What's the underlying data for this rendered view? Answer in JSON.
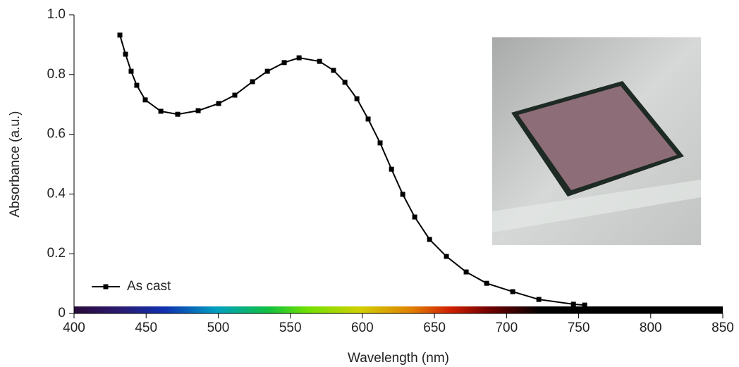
{
  "chart_data": {
    "type": "line",
    "x_label": "Wavelength (nm)",
    "y_label": "Absorbance (a.u.)",
    "x": [
      431.8,
      435.7,
      439.6,
      443.5,
      449.4,
      460.2,
      471.9,
      486.1,
      500.3,
      511.5,
      523.8,
      534.1,
      545.8,
      556.1,
      570.3,
      580.0,
      587.9,
      596.2,
      604.0,
      612.3,
      620.2,
      628.0,
      636.3,
      646.6,
      658.3,
      672.0,
      686.2,
      704.3,
      722.4,
      746.4,
      754.2
    ],
    "series": [
      {
        "name": "As cast",
        "color": "#000000",
        "values": [
          0.932,
          0.868,
          0.811,
          0.764,
          0.715,
          0.677,
          0.667,
          0.679,
          0.703,
          0.731,
          0.776,
          0.811,
          0.84,
          0.856,
          0.844,
          0.814,
          0.774,
          0.719,
          0.651,
          0.571,
          0.483,
          0.399,
          0.323,
          0.248,
          0.191,
          0.139,
          0.101,
          0.073,
          0.047,
          0.031,
          0.028
        ]
      }
    ],
    "xlim": [
      400,
      850
    ],
    "xticks": [
      400,
      450,
      500,
      550,
      600,
      650,
      700,
      750,
      800,
      850
    ],
    "ylim": [
      0,
      1
    ],
    "yticks": [
      0,
      0.2,
      0.4,
      0.6,
      0.8,
      {
        "value": 1,
        "label": "1.0"
      }
    ],
    "legend": "lower left",
    "grid": false
  }
}
